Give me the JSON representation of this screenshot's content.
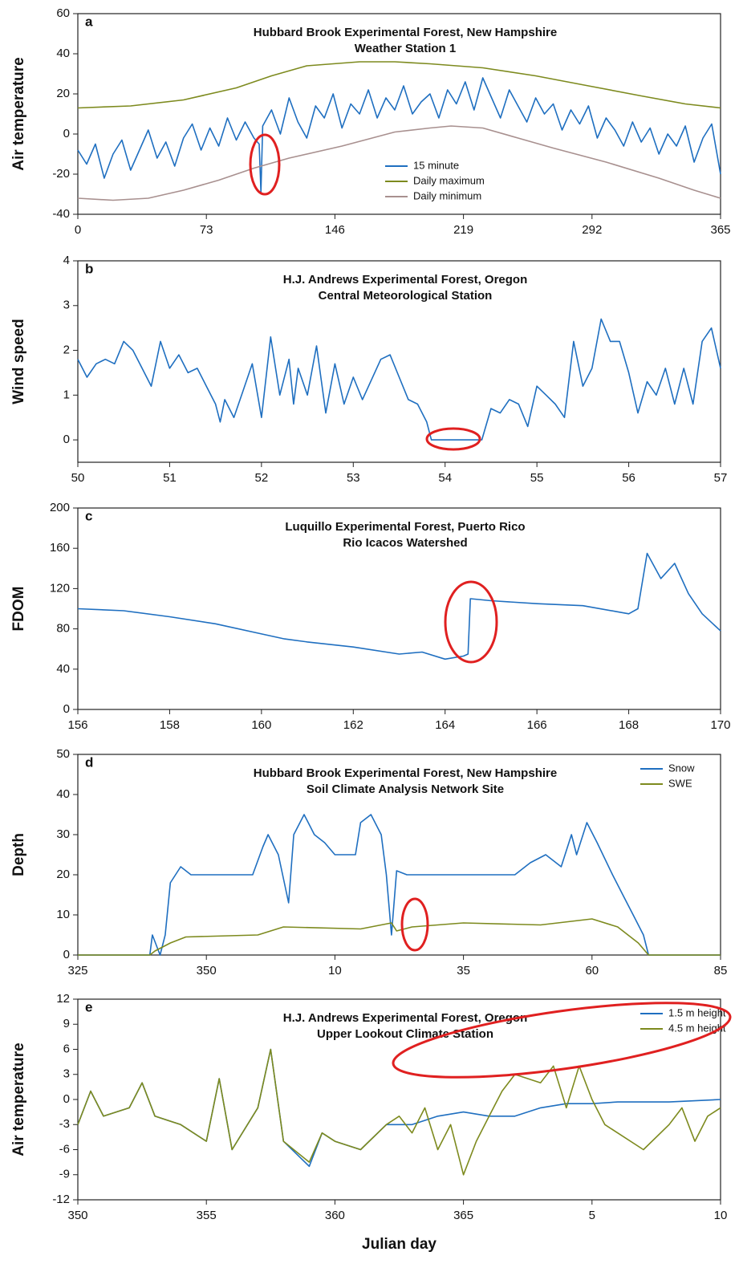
{
  "chart_data": [
    {
      "type": "line",
      "panel_label": "a",
      "title": "Hubbard Brook Experimental Forest, New Hampshire",
      "subtitle": "Weather Station 1",
      "ylabel": "Air temperature",
      "xlim": [
        0,
        365
      ],
      "xticks": [
        0,
        73,
        146,
        219,
        292,
        365
      ],
      "ylim": [
        -40,
        60
      ],
      "yticks": [
        -40,
        -20,
        0,
        20,
        40,
        60
      ],
      "legend": "lower center",
      "series": [
        {
          "name": "15 minute",
          "color": "#1f6fc0",
          "x": [
            0,
            5,
            10,
            15,
            20,
            25,
            30,
            35,
            40,
            45,
            50,
            55,
            60,
            65,
            70,
            75,
            80,
            85,
            90,
            95,
            100,
            103,
            104,
            105,
            110,
            115,
            120,
            125,
            130,
            135,
            140,
            145,
            150,
            155,
            160,
            165,
            170,
            175,
            180,
            185,
            190,
            195,
            200,
            205,
            210,
            215,
            220,
            225,
            230,
            235,
            240,
            245,
            250,
            255,
            260,
            265,
            270,
            275,
            280,
            285,
            290,
            295,
            300,
            305,
            310,
            315,
            320,
            325,
            330,
            335,
            340,
            345,
            350,
            355,
            360,
            365
          ],
          "values": [
            -8,
            -15,
            -5,
            -22,
            -10,
            -3,
            -18,
            -8,
            2,
            -12,
            -4,
            -16,
            -2,
            5,
            -8,
            3,
            -6,
            8,
            -3,
            6,
            -2,
            -5,
            -29,
            4,
            12,
            0,
            18,
            6,
            -2,
            14,
            8,
            20,
            3,
            15,
            10,
            22,
            8,
            18,
            12,
            24,
            10,
            16,
            20,
            8,
            22,
            15,
            26,
            12,
            28,
            18,
            8,
            22,
            14,
            6,
            18,
            10,
            15,
            2,
            12,
            5,
            14,
            -2,
            8,
            2,
            -6,
            6,
            -4,
            3,
            -10,
            0,
            -6,
            4,
            -14,
            -2,
            5,
            -20
          ]
        },
        {
          "name": "Daily maximum",
          "color": "#7d8a1e",
          "x": [
            0,
            30,
            60,
            90,
            110,
            130,
            160,
            180,
            200,
            230,
            260,
            290,
            320,
            345,
            365
          ],
          "values": [
            13,
            14,
            17,
            23,
            29,
            34,
            36,
            36,
            35,
            33,
            29,
            24,
            19,
            15,
            13
          ]
        },
        {
          "name": "Daily minimum",
          "color": "#a8908f",
          "x": [
            0,
            20,
            40,
            60,
            80,
            100,
            120,
            150,
            180,
            200,
            212,
            230,
            250,
            270,
            300,
            330,
            350,
            365
          ],
          "values": [
            -32,
            -33,
            -32,
            -28,
            -23,
            -17,
            -12,
            -6,
            1,
            3,
            4,
            3,
            -2,
            -7,
            -14,
            -22,
            -28,
            -32
          ]
        }
      ]
    },
    {
      "type": "line",
      "panel_label": "b",
      "title": "H.J. Andrews Experimental Forest, Oregon",
      "subtitle": "Central Meteorological Station",
      "ylabel": "Wind speed",
      "xlim": [
        50,
        57
      ],
      "xticks": [
        50,
        51,
        52,
        53,
        54,
        55,
        56,
        57
      ],
      "ylim": [
        -0.5,
        4
      ],
      "yticks": [
        0,
        1,
        2,
        3,
        4
      ],
      "series": [
        {
          "color": "#1f6fc0",
          "x": [
            50,
            50.1,
            50.2,
            50.3,
            50.4,
            50.5,
            50.6,
            50.7,
            50.8,
            50.9,
            51,
            51.1,
            51.2,
            51.3,
            51.4,
            51.5,
            51.55,
            51.6,
            51.7,
            51.8,
            51.9,
            52,
            52.1,
            52.2,
            52.3,
            52.35,
            52.4,
            52.5,
            52.6,
            52.7,
            52.8,
            52.9,
            53,
            53.1,
            53.3,
            53.4,
            53.5,
            53.6,
            53.7,
            53.8,
            53.85,
            54.4,
            54.5,
            54.6,
            54.7,
            54.8,
            54.9,
            55,
            55.1,
            55.2,
            55.3,
            55.4,
            55.5,
            55.6,
            55.7,
            55.8,
            55.9,
            56,
            56.1,
            56.2,
            56.3,
            56.4,
            56.5,
            56.6,
            56.7,
            56.8,
            56.9,
            57
          ],
          "values": [
            1.8,
            1.4,
            1.7,
            1.8,
            1.7,
            2.2,
            2,
            1.6,
            1.2,
            2.2,
            1.6,
            1.9,
            1.5,
            1.6,
            1.2,
            0.8,
            0.4,
            0.9,
            0.5,
            1.1,
            1.7,
            0.5,
            2.3,
            1,
            1.8,
            0.8,
            1.6,
            1,
            2.1,
            0.6,
            1.7,
            0.8,
            1.4,
            0.9,
            1.8,
            1.9,
            1.4,
            0.9,
            0.8,
            0.4,
            0,
            0,
            0.7,
            0.6,
            0.9,
            0.8,
            0.3,
            1.2,
            1,
            0.8,
            0.5,
            2.2,
            1.2,
            1.6,
            2.7,
            2.2,
            2.2,
            1.5,
            0.6,
            1.3,
            1,
            1.6,
            0.8,
            1.6,
            0.8,
            2.2,
            2.5,
            1.6
          ]
        }
      ]
    },
    {
      "type": "line",
      "panel_label": "c",
      "title": "Luquillo Experimental Forest, Puerto Rico",
      "subtitle": "Rio Icacos Watershed",
      "ylabel": "FDOM",
      "xlim": [
        156,
        170
      ],
      "xticks": [
        156,
        158,
        160,
        162,
        164,
        166,
        168,
        170
      ],
      "ylim": [
        0,
        200
      ],
      "yticks": [
        0,
        40,
        80,
        120,
        160,
        200
      ],
      "series": [
        {
          "color": "#1f6fc0",
          "x": [
            156,
            157,
            158,
            159,
            160,
            160.5,
            161,
            162,
            163,
            163.5,
            164,
            164.4,
            164.5,
            164.55,
            165,
            166,
            167,
            168,
            168.2,
            168.4,
            168.7,
            169,
            169.3,
            169.6,
            170
          ],
          "values": [
            100,
            98,
            92,
            85,
            75,
            70,
            67,
            62,
            55,
            57,
            50,
            53,
            55,
            110,
            108,
            105,
            103,
            95,
            100,
            155,
            130,
            145,
            115,
            95,
            78
          ]
        }
      ]
    },
    {
      "type": "line",
      "panel_label": "d",
      "title": "Hubbard Brook Experimental Forest, New Hampshire",
      "subtitle": "Soil Climate Analysis Network Site",
      "ylabel": "Depth",
      "xlim": [
        325,
        450
      ],
      "xticks": [
        325,
        350,
        {
          "value": 375,
          "label": "10"
        },
        {
          "value": 400,
          "label": "35"
        },
        {
          "value": 425,
          "label": "60"
        },
        {
          "value": 450,
          "label": "85"
        }
      ],
      "ylim": [
        0,
        50
      ],
      "yticks": [
        0,
        10,
        20,
        30,
        40,
        50
      ],
      "legend": "upper right",
      "series": [
        {
          "name": "Snow",
          "color": "#1f6fc0",
          "x": [
            325,
            339,
            339.5,
            341,
            342,
            343,
            345,
            347,
            359,
            361,
            362,
            364,
            366,
            367,
            369,
            371,
            373,
            375,
            379,
            380,
            382,
            384,
            385,
            386,
            387,
            389,
            410,
            413,
            416,
            419,
            421,
            422,
            424,
            426,
            429,
            431,
            433,
            435,
            436,
            450
          ],
          "values": [
            0,
            0,
            5,
            0,
            5,
            18,
            22,
            20,
            20,
            27,
            30,
            25,
            13,
            30,
            35,
            30,
            28,
            25,
            25,
            33,
            35,
            30,
            20,
            5,
            21,
            20,
            20,
            23,
            25,
            22,
            30,
            25,
            33,
            28,
            20,
            15,
            10,
            5,
            0,
            0
          ]
        },
        {
          "name": "SWE",
          "color": "#7d8a1e",
          "x": [
            325,
            339,
            340,
            343,
            346,
            360,
            365,
            380,
            386,
            387,
            390,
            400,
            415,
            425,
            430,
            434,
            436,
            450
          ],
          "values": [
            0,
            0,
            1,
            3,
            4.5,
            5,
            7,
            6.5,
            8,
            6,
            7,
            8,
            7.5,
            9,
            7,
            3,
            0,
            0
          ]
        }
      ]
    },
    {
      "type": "line",
      "panel_label": "e",
      "title": "H.J. Andrews Experimental Forest, Oregon",
      "subtitle": "Upper Lookout Climate Station",
      "ylabel": "Air temperature",
      "xlabel": "Julian day",
      "xlim": [
        350,
        375
      ],
      "xticks": [
        350,
        355,
        360,
        365,
        {
          "value": 370,
          "label": "5"
        },
        {
          "value": 375,
          "label": "10"
        }
      ],
      "ylim": [
        -12,
        12
      ],
      "yticks": [
        -12,
        -9,
        -6,
        -3,
        0,
        3,
        6,
        9,
        12
      ],
      "legend": "upper right",
      "series": [
        {
          "name": "1.5 m height",
          "color": "#1f6fc0",
          "x": [
            350,
            350.5,
            351,
            352,
            352.5,
            353,
            354,
            355,
            355.5,
            356,
            357,
            357.5,
            358,
            359,
            359.5,
            360,
            361,
            362,
            363,
            364,
            365,
            366,
            367,
            368,
            369,
            370,
            371,
            372,
            373,
            375
          ],
          "values": [
            -3,
            1,
            -2,
            -1,
            2,
            -2,
            -3,
            -5,
            2.5,
            -6,
            -1,
            6,
            -5,
            -8,
            -4,
            -5,
            -6,
            -3,
            -3,
            -2,
            -1.5,
            -2,
            -2,
            -1,
            -0.5,
            -0.5,
            -0.3,
            -0.3,
            -0.3,
            0
          ]
        },
        {
          "name": "4.5 m height",
          "color": "#7d8a1e",
          "x": [
            350,
            350.5,
            351,
            352,
            352.5,
            353,
            354,
            355,
            355.5,
            356,
            357,
            357.5,
            358,
            359,
            359.5,
            360,
            361,
            362,
            362.5,
            363,
            363.5,
            364,
            364.5,
            365,
            365.5,
            366,
            366.5,
            367,
            368,
            368.5,
            369,
            369.5,
            370,
            370.5,
            371,
            372,
            373,
            373.5,
            374,
            374.5,
            375
          ],
          "values": [
            -3,
            1,
            -2,
            -1,
            2,
            -2,
            -3,
            -5,
            2.5,
            -6,
            -1,
            6,
            -5,
            -7.5,
            -4,
            -5,
            -6,
            -3,
            -2,
            -4,
            -1,
            -6,
            -3,
            -9,
            -5,
            -2,
            1,
            3,
            2,
            4,
            -1,
            4,
            0,
            -3,
            -4,
            -6,
            -3,
            -1,
            -5,
            -2,
            -1
          ]
        }
      ]
    }
  ]
}
